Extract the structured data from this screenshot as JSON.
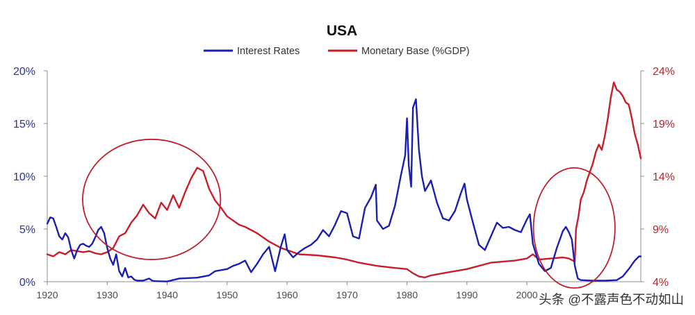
{
  "chart_data": {
    "type": "line",
    "title": "USA",
    "xlim": [
      1920,
      2019
    ],
    "x_ticks": [
      1920,
      1930,
      1940,
      1950,
      1960,
      1970,
      1980,
      1990,
      2000
    ],
    "y_left": {
      "lim": [
        0,
        20
      ],
      "ticks": [
        0,
        5,
        10,
        15,
        20
      ],
      "tick_labels": [
        "0%",
        "5%",
        "10%",
        "15%",
        "20%"
      ],
      "color": "#2633a3"
    },
    "y_right": {
      "lim": [
        4,
        24
      ],
      "ticks": [
        4,
        9,
        14,
        19,
        24
      ],
      "tick_labels": [
        "4%",
        "9%",
        "14%",
        "19%",
        "24%"
      ],
      "color": "#c0202a"
    },
    "grid": false,
    "legend_position": "top-center",
    "series": [
      {
        "name": "Interest Rates",
        "axis": "left",
        "color": "#1a1fb0",
        "points": [
          [
            1920,
            5.5
          ],
          [
            1920.5,
            6.1
          ],
          [
            1921,
            6.0
          ],
          [
            1921.5,
            5.2
          ],
          [
            1922,
            4.3
          ],
          [
            1922.5,
            4.0
          ],
          [
            1923,
            4.6
          ],
          [
            1923.5,
            4.2
          ],
          [
            1924,
            3.0
          ],
          [
            1924.5,
            2.2
          ],
          [
            1925,
            3.0
          ],
          [
            1925.5,
            3.5
          ],
          [
            1926,
            3.6
          ],
          [
            1926.5,
            3.4
          ],
          [
            1927,
            3.3
          ],
          [
            1927.5,
            3.6
          ],
          [
            1928,
            4.2
          ],
          [
            1928.5,
            4.9
          ],
          [
            1929,
            5.2
          ],
          [
            1929.5,
            4.6
          ],
          [
            1930,
            3.2
          ],
          [
            1930.5,
            2.2
          ],
          [
            1931,
            1.6
          ],
          [
            1931.5,
            2.6
          ],
          [
            1932,
            1.0
          ],
          [
            1932.5,
            0.5
          ],
          [
            1933,
            1.3
          ],
          [
            1933.5,
            0.4
          ],
          [
            1934,
            0.5
          ],
          [
            1934.5,
            0.2
          ],
          [
            1935,
            0.1
          ],
          [
            1936,
            0.1
          ],
          [
            1937,
            0.3
          ],
          [
            1937.5,
            0.1
          ],
          [
            1938,
            0.05
          ],
          [
            1940,
            0.02
          ],
          [
            1942,
            0.3
          ],
          [
            1945,
            0.38
          ],
          [
            1947,
            0.6
          ],
          [
            1948,
            1.0
          ],
          [
            1949,
            1.1
          ],
          [
            1950,
            1.2
          ],
          [
            1951,
            1.5
          ],
          [
            1952,
            1.7
          ],
          [
            1953,
            2.0
          ],
          [
            1954,
            0.9
          ],
          [
            1955,
            1.7
          ],
          [
            1956,
            2.6
          ],
          [
            1957,
            3.3
          ],
          [
            1958,
            1.0
          ],
          [
            1959,
            3.4
          ],
          [
            1959.6,
            4.5
          ],
          [
            1960,
            3.0
          ],
          [
            1961,
            2.3
          ],
          [
            1962,
            2.8
          ],
          [
            1963,
            3.2
          ],
          [
            1964,
            3.5
          ],
          [
            1965,
            4.0
          ],
          [
            1966,
            4.9
          ],
          [
            1967,
            4.3
          ],
          [
            1968,
            5.4
          ],
          [
            1969,
            6.7
          ],
          [
            1970,
            6.5
          ],
          [
            1971,
            4.3
          ],
          [
            1972,
            4.1
          ],
          [
            1973,
            7.0
          ],
          [
            1974,
            8.0
          ],
          [
            1974.8,
            9.2
          ],
          [
            1975,
            5.8
          ],
          [
            1976,
            5.0
          ],
          [
            1977,
            5.3
          ],
          [
            1978,
            7.2
          ],
          [
            1979,
            10.1
          ],
          [
            1979.7,
            12.0
          ],
          [
            1980,
            15.5
          ],
          [
            1980.3,
            11.0
          ],
          [
            1980.7,
            9.0
          ],
          [
            1981,
            16.5
          ],
          [
            1981.5,
            17.3
          ],
          [
            1982,
            12.5
          ],
          [
            1982.5,
            10.0
          ],
          [
            1983,
            8.6
          ],
          [
            1984,
            9.6
          ],
          [
            1985,
            7.5
          ],
          [
            1986,
            6.0
          ],
          [
            1987,
            5.8
          ],
          [
            1988,
            6.7
          ],
          [
            1989,
            8.4
          ],
          [
            1989.6,
            9.3
          ],
          [
            1990,
            7.8
          ],
          [
            1991,
            5.6
          ],
          [
            1992,
            3.5
          ],
          [
            1993,
            3.0
          ],
          [
            1994,
            4.3
          ],
          [
            1995,
            5.6
          ],
          [
            1996,
            5.1
          ],
          [
            1997,
            5.2
          ],
          [
            1998,
            4.9
          ],
          [
            1999,
            4.7
          ],
          [
            2000,
            5.9
          ],
          [
            2000.5,
            6.4
          ],
          [
            2001,
            3.6
          ],
          [
            2002,
            1.7
          ],
          [
            2003,
            1.0
          ],
          [
            2004,
            1.3
          ],
          [
            2005,
            3.2
          ],
          [
            2006,
            4.8
          ],
          [
            2006.5,
            5.2
          ],
          [
            2007,
            4.7
          ],
          [
            2007.5,
            4.0
          ],
          [
            2008,
            1.5
          ],
          [
            2008.5,
            0.3
          ],
          [
            2009,
            0.15
          ],
          [
            2011,
            0.1
          ],
          [
            2013,
            0.1
          ],
          [
            2015,
            0.15
          ],
          [
            2016,
            0.5
          ],
          [
            2017,
            1.2
          ],
          [
            2018,
            2.0
          ],
          [
            2018.7,
            2.4
          ],
          [
            2019,
            2.4
          ]
        ]
      },
      {
        "name": "Monetary Base (%GDP)",
        "axis": "right",
        "color": "#c81e2a",
        "points": [
          [
            1920,
            6.6
          ],
          [
            1921,
            6.4
          ],
          [
            1922,
            6.8
          ],
          [
            1923,
            6.6
          ],
          [
            1924,
            7.0
          ],
          [
            1925,
            6.9
          ],
          [
            1926,
            6.8
          ],
          [
            1927,
            6.9
          ],
          [
            1928,
            6.7
          ],
          [
            1929,
            6.6
          ],
          [
            1930,
            6.8
          ],
          [
            1931,
            7.2
          ],
          [
            1932,
            8.3
          ],
          [
            1933,
            8.6
          ],
          [
            1934,
            9.6
          ],
          [
            1935,
            10.3
          ],
          [
            1936,
            11.3
          ],
          [
            1937,
            10.5
          ],
          [
            1938,
            10.0
          ],
          [
            1939,
            11.5
          ],
          [
            1940,
            10.8
          ],
          [
            1941,
            12.2
          ],
          [
            1942,
            11.0
          ],
          [
            1943,
            12.5
          ],
          [
            1944,
            13.8
          ],
          [
            1945,
            14.8
          ],
          [
            1946,
            14.5
          ],
          [
            1947,
            12.8
          ],
          [
            1948,
            11.7
          ],
          [
            1949,
            11.0
          ],
          [
            1950,
            10.2
          ],
          [
            1951,
            9.8
          ],
          [
            1952,
            9.4
          ],
          [
            1953,
            9.2
          ],
          [
            1954,
            8.9
          ],
          [
            1955,
            8.6
          ],
          [
            1956,
            8.2
          ],
          [
            1957,
            7.8
          ],
          [
            1958,
            7.5
          ],
          [
            1959,
            7.2
          ],
          [
            1960,
            7.0
          ],
          [
            1962,
            6.6
          ],
          [
            1965,
            6.5
          ],
          [
            1968,
            6.3
          ],
          [
            1970,
            6.1
          ],
          [
            1972,
            5.8
          ],
          [
            1975,
            5.5
          ],
          [
            1978,
            5.3
          ],
          [
            1980,
            5.2
          ],
          [
            1981,
            4.8
          ],
          [
            1982,
            4.5
          ],
          [
            1983,
            4.4
          ],
          [
            1984,
            4.6
          ],
          [
            1986,
            4.8
          ],
          [
            1988,
            5.0
          ],
          [
            1990,
            5.2
          ],
          [
            1992,
            5.5
          ],
          [
            1994,
            5.8
          ],
          [
            1996,
            5.9
          ],
          [
            1998,
            6.0
          ],
          [
            2000,
            6.2
          ],
          [
            2001,
            6.6
          ],
          [
            2002,
            6.1
          ],
          [
            2004,
            6.2
          ],
          [
            2006,
            6.3
          ],
          [
            2007,
            6.2
          ],
          [
            2008,
            5.9
          ],
          [
            2008.2,
            9.0
          ],
          [
            2008.6,
            10.2
          ],
          [
            2009,
            11.8
          ],
          [
            2009.5,
            12.5
          ],
          [
            2010,
            13.6
          ],
          [
            2010.5,
            14.4
          ],
          [
            2011,
            15.2
          ],
          [
            2011.5,
            16.3
          ],
          [
            2012,
            17.0
          ],
          [
            2012.5,
            16.5
          ],
          [
            2013,
            17.8
          ],
          [
            2013.5,
            19.5
          ],
          [
            2014,
            21.5
          ],
          [
            2014.5,
            22.9
          ],
          [
            2015,
            22.2
          ],
          [
            2015.5,
            22.0
          ],
          [
            2016,
            21.6
          ],
          [
            2016.5,
            21.0
          ],
          [
            2017,
            20.8
          ],
          [
            2017.5,
            19.5
          ],
          [
            2018,
            18.0
          ],
          [
            2018.5,
            17.0
          ],
          [
            2019,
            15.7
          ]
        ]
      }
    ],
    "annotations": [
      {
        "shape": "ellipse",
        "color": "#c0202a",
        "center": [
          1937.4,
          7.8
        ],
        "radii": [
          11.5,
          5.7
        ],
        "axis": "left"
      },
      {
        "shape": "ellipse",
        "color": "#c0202a",
        "center": [
          2007.9,
          5.1
        ],
        "radii": [
          6.8,
          5.7
        ],
        "axis": "left"
      }
    ],
    "watermark": "头条 @不露声色不动如山"
  }
}
